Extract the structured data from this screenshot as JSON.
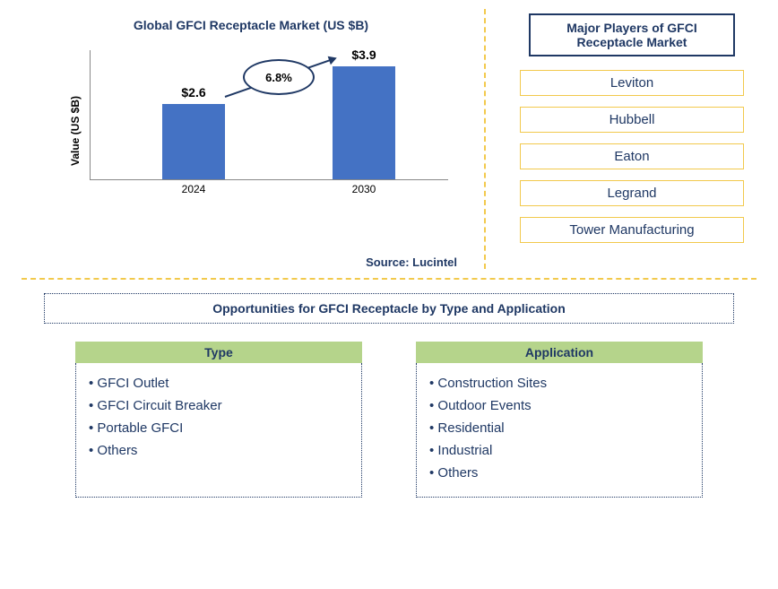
{
  "chart": {
    "title": "Global GFCI Receptacle Market (US $B)",
    "ylabel": "Value (US $B)",
    "type": "bar",
    "categories": [
      "2024",
      "2030"
    ],
    "values": [
      2.6,
      3.9
    ],
    "value_labels": [
      "$2.6",
      "$3.9"
    ],
    "bar_color": "#4472c4",
    "ylim_max": 4.5,
    "growth_label": "6.8%",
    "source_label": "Source: Lucintel",
    "title_color": "#1f3864",
    "axis_color": "#888888",
    "ellipse_border_color": "#1f3864",
    "background_color": "#ffffff"
  },
  "players": {
    "header": "Major Players of GFCI Receptacle Market",
    "list": [
      "Leviton",
      "Hubbell",
      "Eaton",
      "Legrand",
      "Tower Manufacturing"
    ],
    "header_border_color": "#1f3864",
    "box_border_color": "#f2c94c",
    "text_color": "#1f3864"
  },
  "dividers": {
    "color": "#f2c94c"
  },
  "opportunities": {
    "header": "Opportunities for GFCI Receptacle by Type and Application",
    "header_border_color": "#1f3864",
    "col_header_bg": "#b5d48b",
    "text_color": "#1f3864",
    "columns": [
      {
        "title": "Type",
        "items": [
          "GFCI Outlet",
          "GFCI Circuit Breaker",
          "Portable GFCI",
          "Others"
        ]
      },
      {
        "title": "Application",
        "items": [
          "Construction Sites",
          "Outdoor Events",
          "Residential",
          "Industrial",
          "Others"
        ]
      }
    ]
  }
}
